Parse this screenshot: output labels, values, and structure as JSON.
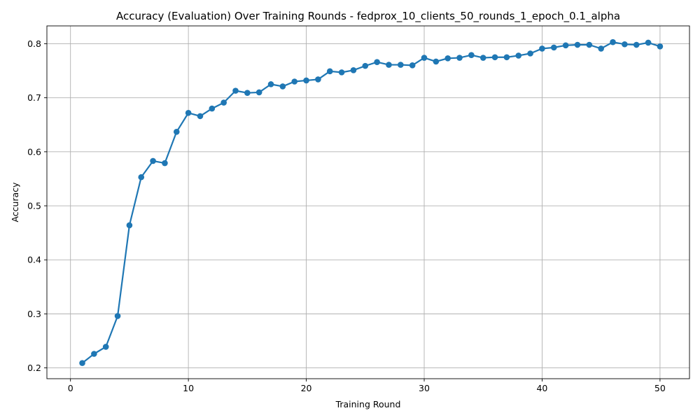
{
  "chart_data": {
    "type": "line",
    "title": "Accuracy (Evaluation) Over Training Rounds - fedprox_10_clients_50_rounds_1_epoch_0.1_alpha",
    "xlabel": "Training Round",
    "ylabel": "Accuracy",
    "xlim": [
      -2,
      52.5
    ],
    "ylim": [
      0.18,
      0.833
    ],
    "xticks": [
      0,
      10,
      20,
      30,
      40,
      50
    ],
    "xtick_labels": [
      "0",
      "10",
      "20",
      "30",
      "40",
      "50"
    ],
    "yticks": [
      0.2,
      0.3,
      0.4,
      0.5,
      0.6,
      0.7,
      0.8
    ],
    "ytick_labels": [
      "0.2",
      "0.3",
      "0.4",
      "0.5",
      "0.6",
      "0.7",
      "0.8"
    ],
    "grid": true,
    "legend": "none",
    "series": [
      {
        "color": "#1f77b4",
        "marker": "circle",
        "x": [
          1,
          2,
          3,
          4,
          5,
          6,
          7,
          8,
          9,
          10,
          11,
          12,
          13,
          14,
          15,
          16,
          17,
          18,
          19,
          20,
          21,
          22,
          23,
          24,
          25,
          26,
          27,
          28,
          29,
          30,
          31,
          32,
          33,
          34,
          35,
          36,
          37,
          38,
          39,
          40,
          41,
          42,
          43,
          44,
          45,
          46,
          47,
          48,
          49,
          50
        ],
        "y": [
          0.209,
          0.226,
          0.239,
          0.296,
          0.464,
          0.553,
          0.583,
          0.579,
          0.637,
          0.672,
          0.666,
          0.68,
          0.691,
          0.713,
          0.709,
          0.71,
          0.725,
          0.721,
          0.73,
          0.732,
          0.734,
          0.749,
          0.747,
          0.751,
          0.759,
          0.766,
          0.761,
          0.761,
          0.76,
          0.774,
          0.767,
          0.773,
          0.774,
          0.779,
          0.774,
          0.775,
          0.775,
          0.778,
          0.782,
          0.791,
          0.793,
          0.797,
          0.798,
          0.798,
          0.791,
          0.803,
          0.799,
          0.798,
          0.802,
          0.795
        ]
      }
    ]
  }
}
